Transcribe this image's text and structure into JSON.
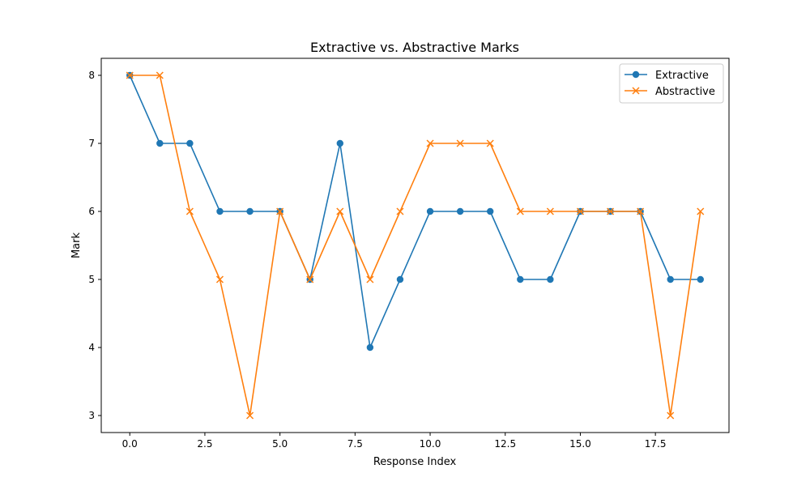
{
  "chart_data": {
    "type": "line",
    "title": "Extractive vs. Abstractive Marks",
    "xlabel": "Response Index",
    "ylabel": "Mark",
    "x": [
      0,
      1,
      2,
      3,
      4,
      5,
      6,
      7,
      8,
      9,
      10,
      11,
      12,
      13,
      14,
      15,
      16,
      17,
      18,
      19
    ],
    "xlim": [
      -0.95,
      19.95
    ],
    "ylim": [
      2.75,
      8.25
    ],
    "xticks": [
      0,
      2.5,
      5,
      7.5,
      10,
      12.5,
      15,
      17.5
    ],
    "xtick_labels": [
      "0.0",
      "2.5",
      "5.0",
      "7.5",
      "10.0",
      "12.5",
      "15.0",
      "17.5"
    ],
    "yticks": [
      3,
      4,
      5,
      6,
      7,
      8
    ],
    "ytick_labels": [
      "3",
      "4",
      "5",
      "6",
      "7",
      "8"
    ],
    "grid": false,
    "legend_position": "top-right",
    "series": [
      {
        "name": "Extractive",
        "marker": "circle",
        "color": "#1f77b4",
        "values": [
          8,
          7,
          7,
          6,
          6,
          6,
          5,
          7,
          4,
          5,
          6,
          6,
          6,
          5,
          5,
          6,
          6,
          6,
          5,
          5
        ]
      },
      {
        "name": "Abstractive",
        "marker": "x",
        "color": "#ff7f0e",
        "values": [
          8,
          8,
          6,
          5,
          3,
          6,
          5,
          6,
          5,
          6,
          7,
          7,
          7,
          6,
          6,
          6,
          6,
          6,
          3,
          6
        ]
      }
    ]
  }
}
